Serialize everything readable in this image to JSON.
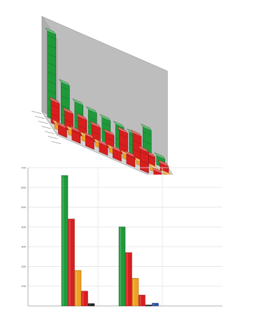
{
  "colors": {
    "green": "#1f9a3a",
    "red": "#d91e1e",
    "orange": "#f0a020",
    "black": "#222222",
    "blue": "#2a55a8",
    "wall": "#bdbdbd",
    "floor": "#d4d4d4"
  },
  "chart_data": [
    {
      "type": "bar",
      "variant": "3d",
      "title": "",
      "xlabel": "",
      "ylabel": "",
      "grid": false,
      "categories": [
        "",
        "",
        "",
        "",
        "",
        "",
        "",
        "",
        ""
      ],
      "series": [
        {
          "color": "#1f9a3a",
          "values": [
            9.5,
            4.5,
            3.0,
            2.8,
            2.6,
            2.5,
            2.3,
            3.5,
            1.0
          ]
        },
        {
          "color": "#d91e1e",
          "values": [
            2.5,
            2.0,
            2.0,
            1.8,
            1.6,
            2.5,
            2.8,
            1.2,
            0.8
          ]
        },
        {
          "color": "#f0a020",
          "values": [
            0.6,
            0.6,
            0.6,
            0.5,
            0.5,
            0.5,
            0.4,
            0.4,
            0.3
          ]
        },
        {
          "color": "#d91e1e",
          "values": [
            1.0,
            1.2,
            1.2,
            1.0,
            1.0,
            1.1,
            2.3,
            0.6,
            0.3
          ]
        }
      ]
    },
    {
      "type": "bar",
      "title": "",
      "xlabel": "",
      "ylabel": "",
      "grid": true,
      "legend": "none",
      "ylim": [
        0,
        700
      ],
      "yticks": [
        "100",
        "200",
        "300",
        "400",
        "500",
        "600",
        "700"
      ],
      "categories": [
        "",
        ""
      ],
      "series": [
        {
          "color": "#1f9a3a",
          "values": [
            660,
            400
          ]
        },
        {
          "color": "#d91e1e",
          "values": [
            440,
            270
          ]
        },
        {
          "color": "#f0a020",
          "values": [
            180,
            140
          ]
        },
        {
          "color": "#d91e1e",
          "values": [
            75,
            55
          ]
        },
        {
          "color": "#222222",
          "values": [
            12,
            5
          ]
        },
        {
          "color": "#2a55a8",
          "values": [
            0,
            14
          ]
        }
      ]
    }
  ]
}
